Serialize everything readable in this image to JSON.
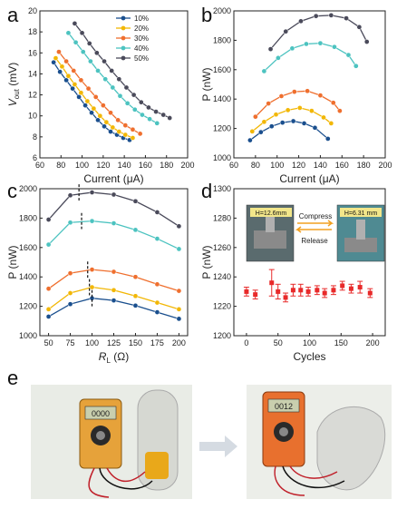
{
  "colors": {
    "s10": "#1a4f8e",
    "s20": "#f2b705",
    "s30": "#ef6f2e",
    "s40": "#4cc3c0",
    "s50": "#4a4a5a",
    "red": "#e82a2a"
  },
  "panels": {
    "a": {
      "label": "a"
    },
    "b": {
      "label": "b"
    },
    "c": {
      "label": "c"
    },
    "d": {
      "label": "d"
    },
    "e": {
      "label": "e"
    }
  },
  "inset_d": {
    "left_label": "H=12.6mm",
    "right_label": "H=6.31 mm",
    "compress": "Compress",
    "release": "Release"
  },
  "chart_data": [
    {
      "panel": "a",
      "type": "line",
      "xlabel": "Current (μA)",
      "ylabel_main": "V",
      "ylabel_sub": "out",
      "ylabel_unit": " (mV)",
      "xlim": [
        60,
        200
      ],
      "ylim": [
        6,
        20
      ],
      "xticks": [
        60,
        80,
        100,
        120,
        140,
        160,
        180,
        200
      ],
      "yticks": [
        6,
        8,
        10,
        12,
        14,
        16,
        18,
        20
      ],
      "legend_position": "top-right",
      "series": [
        {
          "name": "10%",
          "color_key": "s10",
          "x": [
            73,
            79,
            85,
            91,
            97,
            103,
            109,
            115,
            121,
            127,
            133,
            139,
            145
          ],
          "y": [
            15.1,
            14.2,
            13.4,
            12.6,
            11.8,
            11.0,
            10.3,
            9.6,
            9.0,
            8.5,
            8.2,
            7.9,
            7.7
          ]
        },
        {
          "name": "20%",
          "color_key": "s20",
          "x": [
            75,
            81,
            87,
            93,
            99,
            105,
            111,
            117,
            123,
            129,
            135,
            141,
            148
          ],
          "y": [
            15.5,
            14.7,
            13.8,
            13.0,
            12.2,
            11.4,
            10.7,
            10.0,
            9.4,
            8.9,
            8.5,
            8.2,
            7.9
          ]
        },
        {
          "name": "30%",
          "color_key": "s30",
          "x": [
            78,
            85,
            92,
            99,
            106,
            113,
            120,
            127,
            134,
            141,
            148,
            155
          ],
          "y": [
            16.1,
            15.2,
            14.3,
            13.4,
            12.6,
            11.8,
            11.0,
            10.3,
            9.6,
            9.1,
            8.7,
            8.3
          ]
        },
        {
          "name": "40%",
          "color_key": "s40",
          "x": [
            87,
            94,
            101,
            108,
            115,
            122,
            129,
            136,
            143,
            150,
            157,
            164,
            171
          ],
          "y": [
            17.9,
            17.0,
            16.1,
            15.2,
            14.3,
            13.5,
            12.7,
            11.9,
            11.2,
            10.6,
            10.1,
            9.7,
            9.3
          ]
        },
        {
          "name": "50%",
          "color_key": "s50",
          "x": [
            93,
            100,
            107,
            114,
            121,
            128,
            135,
            142,
            149,
            156,
            163,
            170,
            177,
            183
          ],
          "y": [
            18.8,
            17.9,
            16.9,
            16.0,
            15.2,
            14.3,
            13.5,
            12.7,
            12.0,
            11.3,
            10.8,
            10.4,
            10.1,
            9.8
          ]
        }
      ]
    },
    {
      "panel": "b",
      "type": "line",
      "xlabel": "Current (μA)",
      "ylabel": "P (nW)",
      "xlim": [
        60,
        200
      ],
      "ylim": [
        1000,
        2000
      ],
      "xticks": [
        60,
        80,
        100,
        120,
        140,
        160,
        180,
        200
      ],
      "yticks": [
        1000,
        1200,
        1400,
        1600,
        1800,
        2000
      ],
      "series": [
        {
          "name": "10%",
          "color_key": "s10",
          "x": [
            75,
            85,
            95,
            105,
            115,
            125,
            135,
            147
          ],
          "y": [
            1120,
            1175,
            1215,
            1240,
            1250,
            1235,
            1205,
            1130
          ]
        },
        {
          "name": "20%",
          "color_key": "s20",
          "x": [
            77,
            88,
            99,
            110,
            121,
            132,
            143,
            150
          ],
          "y": [
            1180,
            1245,
            1295,
            1325,
            1340,
            1320,
            1275,
            1235
          ]
        },
        {
          "name": "30%",
          "color_key": "s30",
          "x": [
            80,
            92,
            104,
            116,
            128,
            140,
            152,
            158
          ],
          "y": [
            1280,
            1370,
            1420,
            1450,
            1455,
            1425,
            1375,
            1320
          ]
        },
        {
          "name": "40%",
          "color_key": "s40",
          "x": [
            88,
            101,
            114,
            127,
            140,
            153,
            166,
            173
          ],
          "y": [
            1590,
            1680,
            1745,
            1775,
            1780,
            1755,
            1700,
            1625
          ]
        },
        {
          "name": "50%",
          "color_key": "s50",
          "x": [
            94,
            108,
            122,
            136,
            150,
            164,
            176,
            183
          ],
          "y": [
            1740,
            1860,
            1930,
            1965,
            1970,
            1950,
            1890,
            1790
          ]
        }
      ]
    },
    {
      "panel": "c",
      "type": "line",
      "xlabel_main": "R",
      "xlabel_sub": "L",
      "xlabel_unit": " (Ω)",
      "ylabel": "P (nW)",
      "xlim": [
        40,
        210
      ],
      "ylim": [
        1000,
        2000
      ],
      "xticks": [
        50,
        75,
        100,
        125,
        150,
        175,
        200
      ],
      "yticks": [
        1000,
        1200,
        1400,
        1600,
        1800,
        2000
      ],
      "series": [
        {
          "name": "10%",
          "color_key": "s10",
          "x": [
            50,
            75,
            100,
            125,
            150,
            175,
            200
          ],
          "y": [
            1130,
            1215,
            1255,
            1240,
            1205,
            1160,
            1115
          ]
        },
        {
          "name": "20%",
          "color_key": "s20",
          "x": [
            50,
            75,
            100,
            125,
            150,
            175,
            200
          ],
          "y": [
            1180,
            1290,
            1330,
            1310,
            1270,
            1225,
            1180
          ]
        },
        {
          "name": "30%",
          "color_key": "s30",
          "x": [
            50,
            75,
            100,
            125,
            150,
            175,
            200
          ],
          "y": [
            1320,
            1425,
            1450,
            1435,
            1400,
            1350,
            1305
          ]
        },
        {
          "name": "40%",
          "color_key": "s40",
          "x": [
            50,
            75,
            100,
            125,
            150,
            175,
            200
          ],
          "y": [
            1620,
            1770,
            1780,
            1765,
            1720,
            1660,
            1590
          ]
        },
        {
          "name": "50%",
          "color_key": "s50",
          "x": [
            50,
            75,
            100,
            125,
            150,
            175,
            200
          ],
          "y": [
            1790,
            1955,
            1975,
            1960,
            1915,
            1840,
            1745
          ]
        }
      ],
      "peak_markers_x": [
        85,
        88,
        95,
        97,
        100
      ]
    },
    {
      "panel": "d",
      "type": "scatter",
      "xlabel": "Cycles",
      "ylabel": "P (nW)",
      "xlim": [
        -20,
        220
      ],
      "ylim": [
        1200,
        1300
      ],
      "xticks": [
        0,
        50,
        100,
        150,
        200
      ],
      "yticks": [
        1200,
        1220,
        1240,
        1260,
        1280,
        1300
      ],
      "series": [
        {
          "name": "",
          "color_key": "red",
          "x": [
            0,
            14,
            40,
            50,
            62,
            74,
            86,
            98,
            112,
            124,
            138,
            152,
            166,
            180,
            196
          ],
          "y": [
            1230,
            1228,
            1236,
            1230,
            1226,
            1231,
            1231,
            1230,
            1231,
            1229,
            1231,
            1234,
            1232,
            1233,
            1229
          ],
          "err": [
            3,
            3,
            9,
            5,
            3,
            4,
            4,
            3,
            3,
            3,
            3,
            3,
            3,
            4,
            3
          ]
        }
      ]
    }
  ],
  "photos_e": {
    "left_display": "0000",
    "right_display": "0012"
  }
}
